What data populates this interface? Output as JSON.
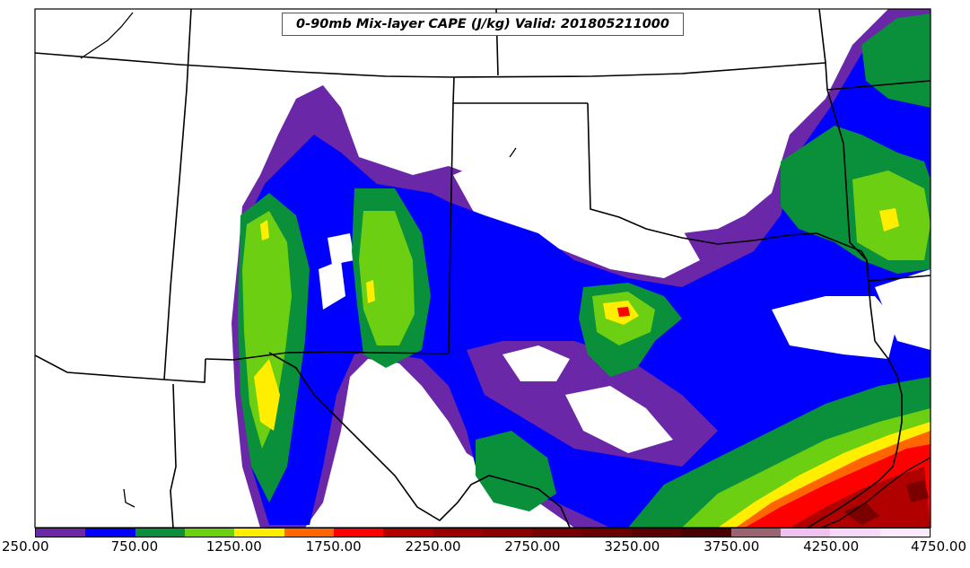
{
  "title": "0-90mb Mix-layer CAPE (J/kg) Valid: 201805211000",
  "colorbar": {
    "colors": [
      "#6a27a8",
      "#0000ff",
      "#0a8f3a",
      "#6dcf12",
      "#ffee00",
      "#ff6600",
      "#ff0000",
      "#b00000",
      "#9a0000",
      "#8c0000",
      "#7a0000",
      "#6b0000",
      "#5a0000",
      "#480000",
      "#9b6473",
      "#f0c0f0",
      "#f8d8f8",
      "#fbeafb"
    ],
    "tick_labels": [
      "250.00",
      "750.00",
      "1250.00",
      "1750.00",
      "2250.00",
      "2750.00",
      "3250.00",
      "3750.00",
      "4250.00",
      "4750.00"
    ]
  }
}
